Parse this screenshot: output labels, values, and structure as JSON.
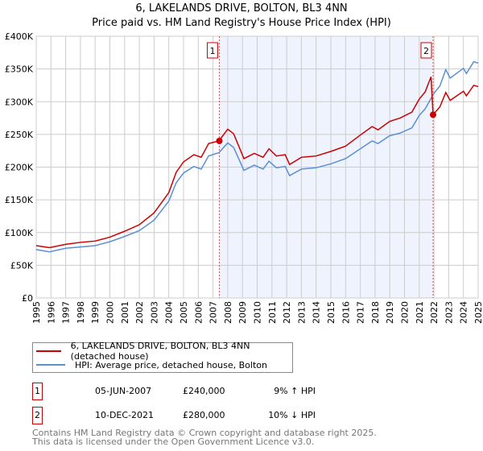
{
  "chart_data": {
    "type": "line",
    "title": "6, LAKELANDS DRIVE, BOLTON, BL3 4NN",
    "subtitle": "Price paid vs. HM Land Registry's House Price Index (HPI)",
    "xlim": [
      1995,
      2025
    ],
    "ylim": [
      0,
      400000
    ],
    "y_ticks": [
      {
        "v": 0,
        "label": "£0"
      },
      {
        "v": 50000,
        "label": "£50K"
      },
      {
        "v": 100000,
        "label": "£100K"
      },
      {
        "v": 150000,
        "label": "£150K"
      },
      {
        "v": 200000,
        "label": "£200K"
      },
      {
        "v": 250000,
        "label": "£250K"
      },
      {
        "v": 300000,
        "label": "£300K"
      },
      {
        "v": 350000,
        "label": "£350K"
      },
      {
        "v": 400000,
        "label": "£400K"
      }
    ],
    "x_ticks": [
      "1995",
      "1996",
      "1997",
      "1998",
      "1999",
      "2000",
      "2001",
      "2002",
      "2003",
      "2004",
      "2005",
      "2006",
      "2007",
      "2008",
      "2009",
      "2010",
      "2011",
      "2012",
      "2013",
      "2014",
      "2015",
      "2016",
      "2017",
      "2018",
      "2019",
      "2020",
      "2021",
      "2022",
      "2023",
      "2024",
      "2025"
    ],
    "grid": true,
    "x": [
      1995,
      1995.9,
      1997,
      1998,
      1999,
      2000,
      2001,
      2002,
      2003,
      2004,
      2004.5,
      2005,
      2005.7,
      2006.2,
      2006.7,
      2007.4,
      2008,
      2008.4,
      2009.1,
      2009.8,
      2010.4,
      2010.8,
      2011.3,
      2011.9,
      2012.2,
      2013,
      2014,
      2015,
      2016,
      2017,
      2017.8,
      2018.2,
      2019,
      2019.7,
      2020.5,
      2021,
      2021.4,
      2021.8,
      2021.94,
      2022.4,
      2022.8,
      2023.1,
      2024,
      2024.2,
      2024.7,
      2025
    ],
    "series": [
      {
        "name": "6, LAKELANDS DRIVE, BOLTON, BL3 4NN (detached house)",
        "color": "#cc0000",
        "values": [
          80000,
          77000,
          82000,
          85000,
          87000,
          93000,
          102000,
          112000,
          130000,
          161000,
          192000,
          208000,
          219000,
          215000,
          236000,
          240000,
          258000,
          251000,
          213000,
          221000,
          215000,
          228000,
          217000,
          219000,
          204000,
          215000,
          217000,
          224000,
          232000,
          249000,
          262000,
          257000,
          270000,
          275000,
          284000,
          304000,
          315000,
          338000,
          280000,
          292000,
          314000,
          302000,
          316000,
          309000,
          325000,
          323000
        ]
      },
      {
        "name": "HPI: Average price, detached house, Bolton",
        "color": "#5b8fd4",
        "values": [
          74000,
          70500,
          76000,
          78000,
          80000,
          86000,
          94000,
          103000,
          119000,
          148000,
          176000,
          191000,
          201000,
          197000,
          217000,
          222000,
          237000,
          230000,
          195000,
          203000,
          197000,
          209000,
          199000,
          201000,
          187000,
          197000,
          199000,
          205000,
          213000,
          228000,
          240000,
          236000,
          248000,
          252000,
          260000,
          279000,
          289000,
          305000,
          311000,
          324000,
          349000,
          336000,
          351000,
          343000,
          361000,
          359000
        ]
      }
    ],
    "sales": [
      {
        "label": "1",
        "x": 2007.43,
        "y": 240000,
        "date": "05-JUN-2007",
        "price": "£240,000",
        "hpi": "9% ↑ HPI"
      },
      {
        "label": "2",
        "x": 2021.94,
        "y": 280000,
        "date": "10-DEC-2021",
        "price": "£280,000",
        "hpi": "10% ↓ HPI"
      }
    ],
    "shade_color": "#eef3fd",
    "legend_placement": "bottom"
  },
  "footer": {
    "line1": "Contains HM Land Registry data © Crown copyright and database right 2025.",
    "line2": "This data is licensed under the Open Government Licence v3.0."
  }
}
